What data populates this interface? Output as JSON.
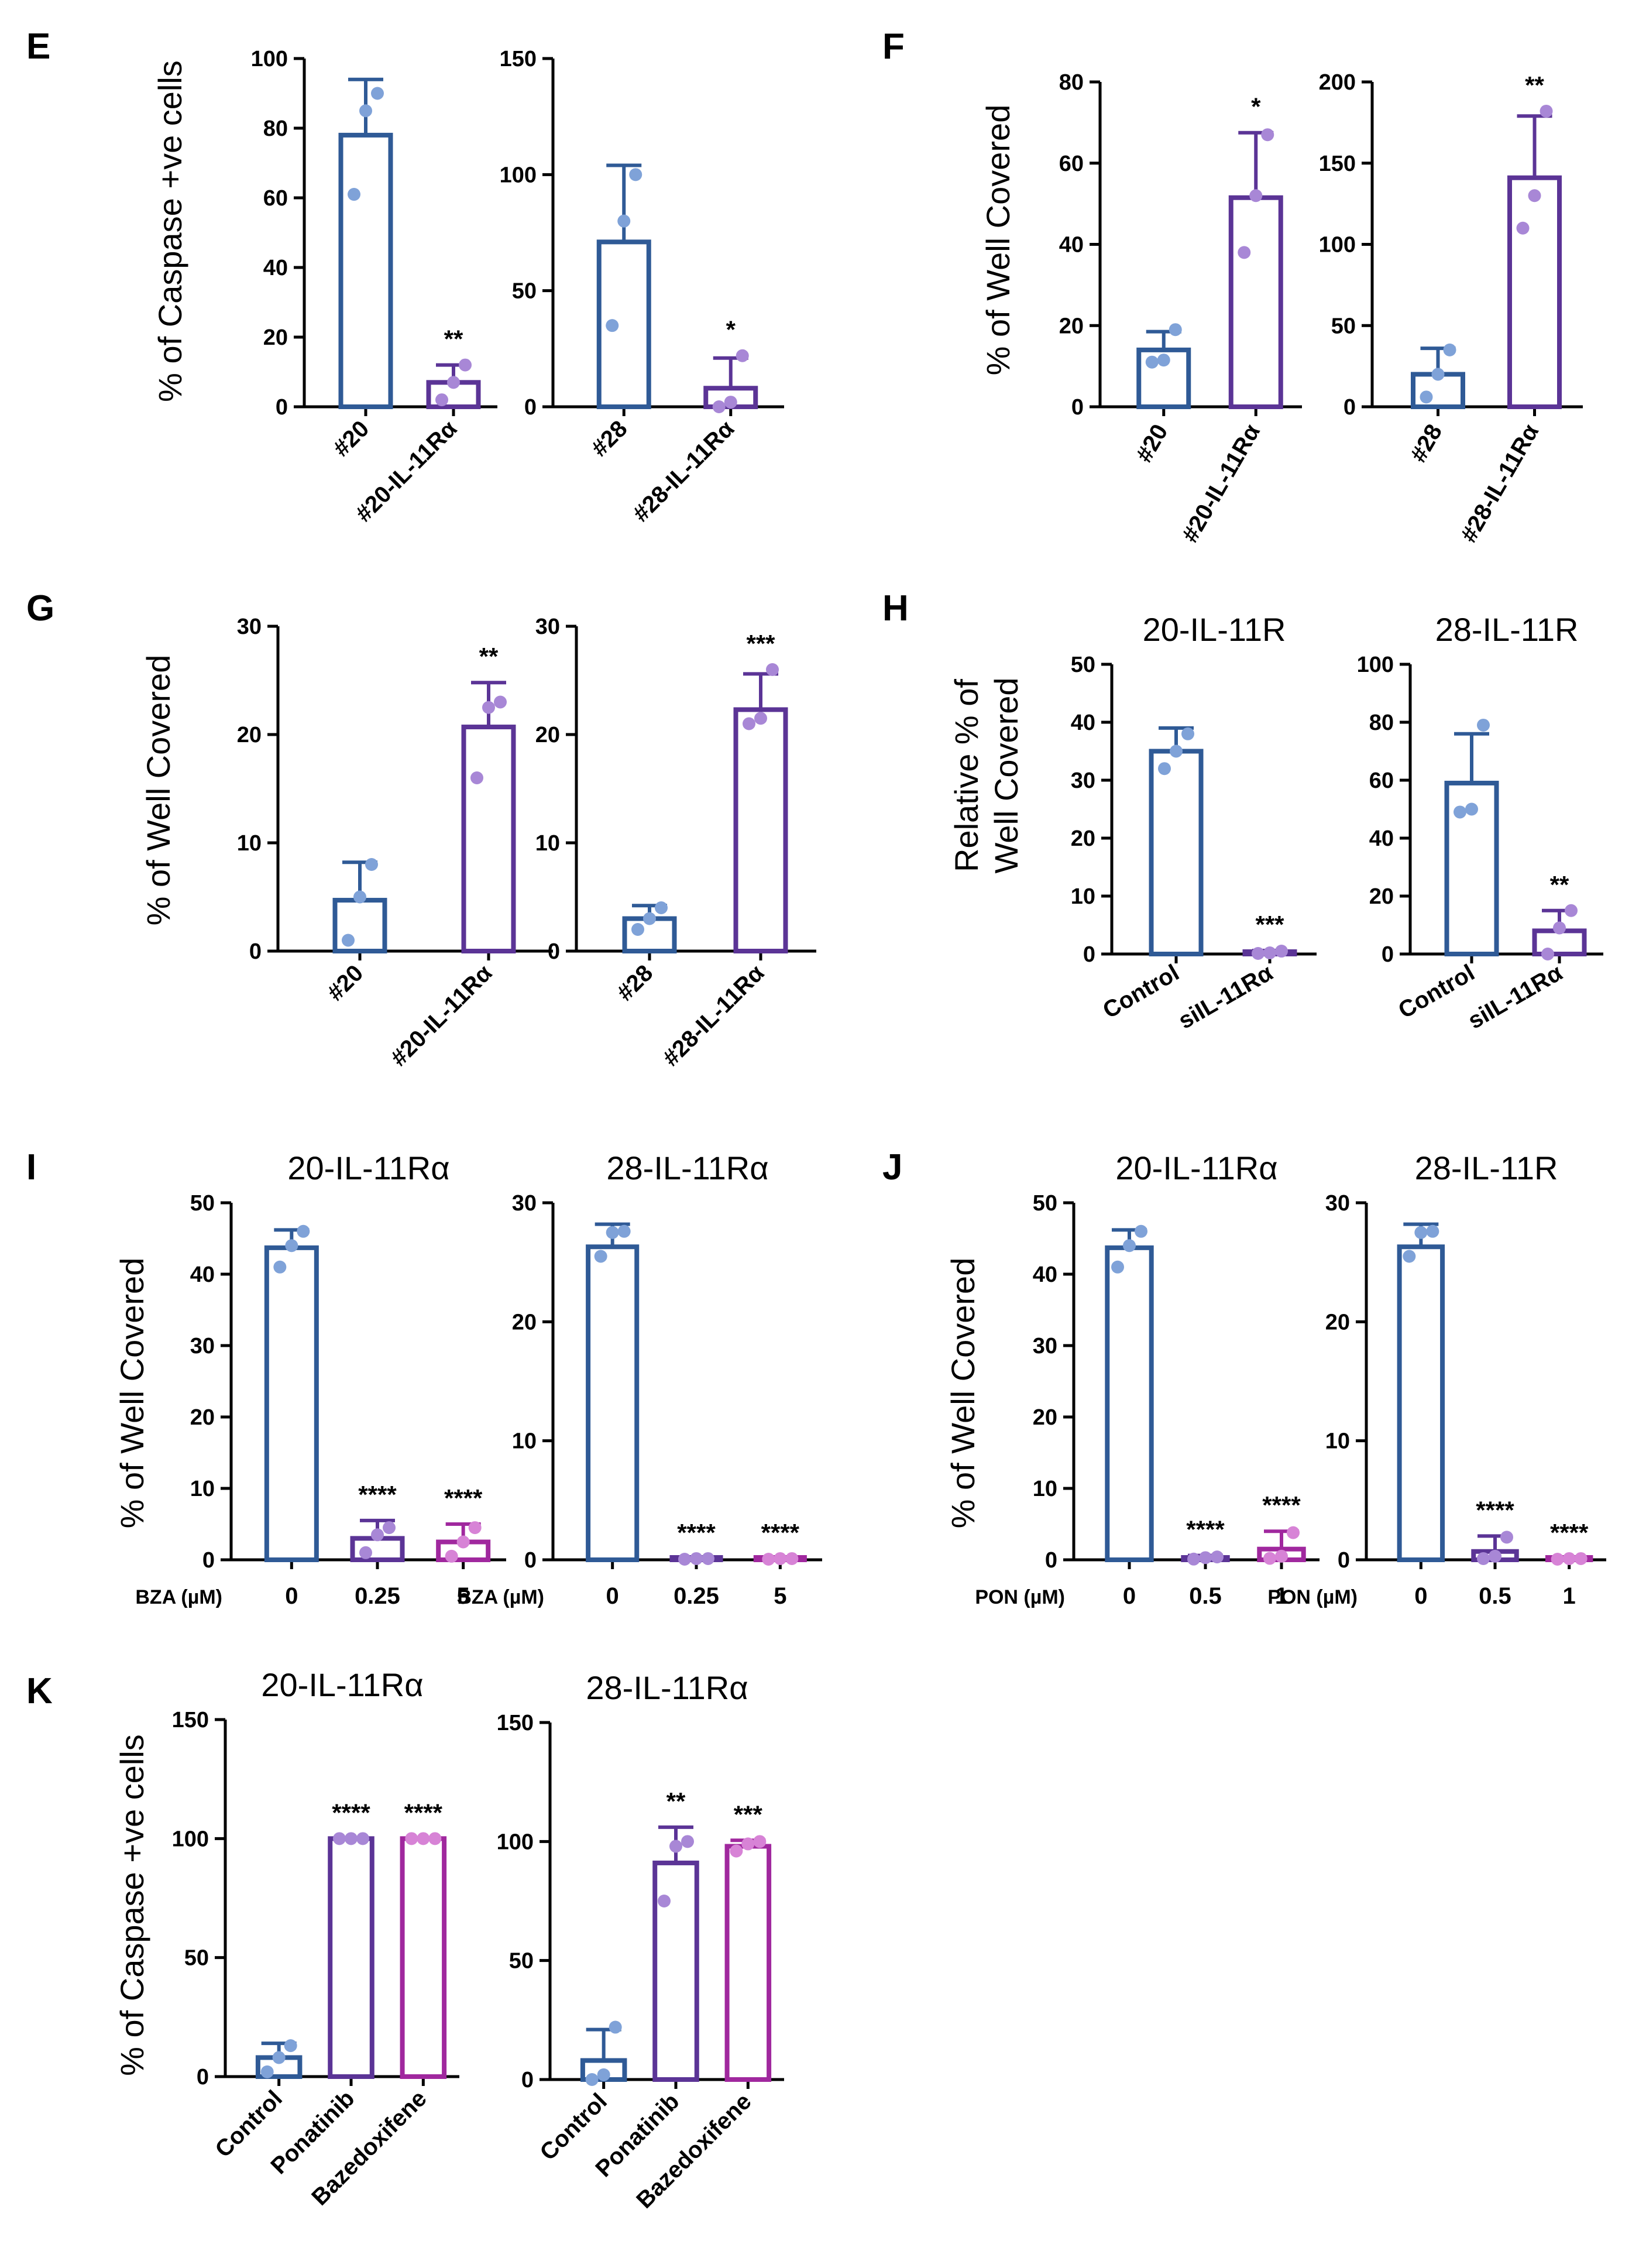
{
  "figure": {
    "colors": {
      "blue": "#2F5A96",
      "purple": "#5B3496",
      "magenta": "#A0289E",
      "dot_blue": "#7FA2D8",
      "dot_purple": "#A887D6",
      "dot_magenta": "#D783D6",
      "axis": "#000000"
    }
  },
  "panels": [
    {
      "letter": "E",
      "ylabel": "% of Caspase +ve cells"
    },
    {
      "letter": "F",
      "ylabel": "% of Well Covered"
    },
    {
      "letter": "G",
      "ylabel": "% of Well Covered"
    },
    {
      "letter": "H",
      "ylabel": "Relative % of\nWell Covered"
    },
    {
      "letter": "I",
      "ylabel": "% of Well Covered"
    },
    {
      "letter": "J",
      "ylabel": "% of Well Covered"
    },
    {
      "letter": "K",
      "ylabel": "% of Caspase +ve cells"
    }
  ],
  "chart_data": [
    {
      "id": "E1",
      "panel": "E",
      "type": "bar",
      "title": "",
      "xlabel": "",
      "ylabel": "% of Caspase +ve cells",
      "ylim": [
        0,
        100
      ],
      "yticks": [
        0,
        20,
        40,
        60,
        80,
        100
      ],
      "tick_rotation": -45,
      "axis_label": "",
      "categories": [
        "#20",
        "#20-IL-11Rα"
      ],
      "values": [
        78,
        7
      ],
      "errors": [
        16,
        5
      ],
      "points": [
        [
          61,
          85,
          90
        ],
        [
          2,
          7,
          12
        ]
      ],
      "significance": [
        "",
        "**"
      ],
      "colors": [
        "blue",
        "purple"
      ]
    },
    {
      "id": "E2",
      "panel": "E",
      "type": "bar",
      "title": "",
      "xlabel": "",
      "ylabel": "",
      "ylim": [
        0,
        150
      ],
      "yticks": [
        0,
        50,
        100,
        150
      ],
      "tick_rotation": -45,
      "axis_label": "",
      "categories": [
        "#28",
        "#28-IL-11Rα"
      ],
      "values": [
        71,
        8
      ],
      "errors": [
        33,
        13
      ],
      "points": [
        [
          35,
          80,
          100
        ],
        [
          0,
          2,
          22
        ]
      ],
      "significance": [
        "",
        "*"
      ],
      "colors": [
        "blue",
        "purple"
      ]
    },
    {
      "id": "F1",
      "panel": "F",
      "type": "bar",
      "title": "",
      "xlabel": "",
      "ylabel": "% of Well Covered",
      "ylim": [
        0,
        80
      ],
      "yticks": [
        0,
        20,
        40,
        60,
        80
      ],
      "tick_rotation": -60,
      "axis_label": "",
      "categories": [
        "#20",
        "#20-IL-11Rα"
      ],
      "values": [
        14,
        51.5
      ],
      "errors": [
        4.5,
        16
      ],
      "points": [
        [
          11,
          11.5,
          19
        ],
        [
          38,
          52,
          67
        ]
      ],
      "significance": [
        "",
        "*"
      ],
      "colors": [
        "blue",
        "purple"
      ]
    },
    {
      "id": "F2",
      "panel": "F",
      "type": "bar",
      "title": "",
      "xlabel": "",
      "ylabel": "",
      "ylim": [
        0,
        200
      ],
      "yticks": [
        0,
        50,
        100,
        150,
        200
      ],
      "tick_rotation": -60,
      "axis_label": "",
      "categories": [
        "#28",
        "#28-IL-11Rα"
      ],
      "values": [
        20,
        141
      ],
      "errors": [
        16,
        38
      ],
      "points": [
        [
          6,
          20,
          35
        ],
        [
          110,
          130,
          182
        ]
      ],
      "significance": [
        "",
        "**"
      ],
      "colors": [
        "blue",
        "purple"
      ]
    },
    {
      "id": "G1",
      "panel": "G",
      "type": "bar",
      "title": "",
      "xlabel": "",
      "ylabel": "% of Well Covered",
      "ylim": [
        0,
        30
      ],
      "yticks": [
        0,
        10,
        20,
        30
      ],
      "tick_rotation": -45,
      "axis_label": "",
      "categories": [
        "#20",
        "#20-IL-11Rα"
      ],
      "values": [
        4.7,
        20.7
      ],
      "errors": [
        3.5,
        4.1
      ],
      "points": [
        [
          1,
          5,
          8
        ],
        [
          16,
          22.5,
          23
        ]
      ],
      "significance": [
        "",
        "**"
      ],
      "colors": [
        "blue",
        "purple"
      ]
    },
    {
      "id": "G2",
      "panel": "G",
      "type": "bar",
      "title": "",
      "xlabel": "",
      "ylabel": "",
      "ylim": [
        0,
        30
      ],
      "yticks": [
        0,
        10,
        20,
        30
      ],
      "tick_rotation": -45,
      "axis_label": "",
      "categories": [
        "#28",
        "#28-IL-11Rα"
      ],
      "values": [
        3,
        22.3
      ],
      "errors": [
        1.2,
        3.3
      ],
      "points": [
        [
          2,
          3,
          4
        ],
        [
          21,
          21.5,
          26
        ]
      ],
      "significance": [
        "",
        "***"
      ],
      "colors": [
        "blue",
        "purple"
      ]
    },
    {
      "id": "H1",
      "panel": "H",
      "type": "bar",
      "title": "20-IL-11R",
      "xlabel": "",
      "ylabel": "Relative % of Well Covered",
      "ylim": [
        0,
        50
      ],
      "yticks": [
        0,
        10,
        20,
        30,
        40,
        50
      ],
      "tick_rotation": -30,
      "axis_label": "",
      "categories": [
        "Control",
        "siIL-11Rα"
      ],
      "values": [
        35,
        0.3
      ],
      "errors": [
        4,
        0.3
      ],
      "points": [
        [
          32,
          35,
          38
        ],
        [
          0.1,
          0.2,
          0.5
        ]
      ],
      "significance": [
        "",
        "***"
      ],
      "colors": [
        "blue",
        "purple"
      ]
    },
    {
      "id": "H2",
      "panel": "H",
      "type": "bar",
      "title": "28-IL-11R",
      "xlabel": "",
      "ylabel": "",
      "ylim": [
        0,
        100
      ],
      "yticks": [
        0,
        20,
        40,
        60,
        80,
        100
      ],
      "tick_rotation": -30,
      "axis_label": "",
      "categories": [
        "Control",
        "siIL-11Rα"
      ],
      "values": [
        59,
        8
      ],
      "errors": [
        17,
        7
      ],
      "points": [
        [
          49,
          50,
          79
        ],
        [
          0,
          9,
          15
        ]
      ],
      "significance": [
        "",
        "**"
      ],
      "colors": [
        "blue",
        "purple"
      ]
    },
    {
      "id": "I1",
      "panel": "I",
      "type": "bar",
      "title": "20-IL-11Rα",
      "xlabel": "",
      "ylabel": "% of Well Covered",
      "ylim": [
        0,
        50
      ],
      "yticks": [
        0,
        10,
        20,
        30,
        40,
        50
      ],
      "tick_rotation": 0,
      "axis_label": "BZA (µM)",
      "categories": [
        "0",
        "0.25",
        "5"
      ],
      "values": [
        43.7,
        3,
        2.5
      ],
      "errors": [
        2.5,
        2.5,
        2.5
      ],
      "points": [
        [
          41,
          44,
          46
        ],
        [
          1,
          3.5,
          4.5
        ],
        [
          0.5,
          2.5,
          4.5
        ]
      ],
      "significance": [
        "",
        "****",
        "****"
      ],
      "colors": [
        "blue",
        "purple",
        "magenta"
      ]
    },
    {
      "id": "I2",
      "panel": "I",
      "type": "bar",
      "title": "28-IL-11Rα",
      "xlabel": "",
      "ylabel": "",
      "ylim": [
        0,
        30
      ],
      "yticks": [
        0,
        10,
        20,
        30
      ],
      "tick_rotation": 0,
      "axis_label": "BZA (µM)",
      "categories": [
        "0",
        "0.25",
        "5"
      ],
      "values": [
        26.3,
        0.1,
        0.1
      ],
      "errors": [
        1.9,
        0,
        0
      ],
      "points": [
        [
          25.5,
          27.5,
          27.6
        ],
        [
          0.05,
          0.1,
          0.1
        ],
        [
          0.05,
          0.1,
          0.1
        ]
      ],
      "significance": [
        "",
        "****",
        "****"
      ],
      "colors": [
        "blue",
        "purple",
        "magenta"
      ]
    },
    {
      "id": "J1",
      "panel": "J",
      "type": "bar",
      "title": "20-IL-11Rα",
      "xlabel": "",
      "ylabel": "% of Well Covered",
      "ylim": [
        0,
        50
      ],
      "yticks": [
        0,
        10,
        20,
        30,
        40,
        50
      ],
      "tick_rotation": 0,
      "axis_label": "PON (µM)",
      "categories": [
        "0",
        "0.5",
        "1"
      ],
      "values": [
        43.7,
        0.3,
        1.5
      ],
      "errors": [
        2.5,
        0.3,
        2.5
      ],
      "points": [
        [
          41,
          44,
          46
        ],
        [
          0.1,
          0.3,
          0.4
        ],
        [
          0.2,
          0.5,
          3.8
        ]
      ],
      "significance": [
        "",
        "****",
        "****"
      ],
      "colors": [
        "blue",
        "purple",
        "magenta"
      ]
    },
    {
      "id": "J2",
      "panel": "J",
      "type": "bar",
      "title": "28-IL-11R",
      "xlabel": "",
      "ylabel": "",
      "ylim": [
        0,
        30
      ],
      "yticks": [
        0,
        10,
        20,
        30
      ],
      "tick_rotation": 0,
      "axis_label": "PON (µM)",
      "categories": [
        "0",
        "0.5",
        "1"
      ],
      "values": [
        26.3,
        0.7,
        0.1
      ],
      "errors": [
        1.9,
        1.3,
        0
      ],
      "points": [
        [
          25.5,
          27.5,
          27.6
        ],
        [
          0.1,
          0.3,
          1.9
        ],
        [
          0.05,
          0.1,
          0.1
        ]
      ],
      "significance": [
        "",
        "****",
        "****"
      ],
      "colors": [
        "blue",
        "purple",
        "magenta"
      ]
    },
    {
      "id": "K1",
      "panel": "K",
      "type": "bar",
      "title": "20-IL-11Rα",
      "xlabel": "",
      "ylabel": "% of Caspase +ve cells",
      "ylim": [
        0,
        150
      ],
      "yticks": [
        0,
        50,
        100,
        150
      ],
      "tick_rotation": -45,
      "axis_label": "",
      "categories": [
        "Control",
        "Ponatinib",
        "Bazedoxifene"
      ],
      "values": [
        8,
        100,
        100
      ],
      "errors": [
        6,
        0,
        0
      ],
      "points": [
        [
          2,
          8,
          13
        ],
        [
          100,
          100,
          100
        ],
        [
          100,
          100,
          100
        ]
      ],
      "significance": [
        "",
        "****",
        "****"
      ],
      "colors": [
        "blue",
        "purple",
        "magenta"
      ]
    },
    {
      "id": "K2",
      "panel": "K",
      "type": "bar",
      "title": "28-IL-11Rα",
      "xlabel": "",
      "ylabel": "",
      "ylim": [
        0,
        150
      ],
      "yticks": [
        0,
        50,
        100,
        150
      ],
      "tick_rotation": -45,
      "axis_label": "",
      "categories": [
        "Control",
        "Ponatinib",
        "Bazedoxifene"
      ],
      "values": [
        8,
        91,
        98
      ],
      "errors": [
        13,
        15,
        2.5
      ],
      "points": [
        [
          0,
          2,
          22
        ],
        [
          75,
          98,
          100
        ],
        [
          96,
          99,
          100
        ]
      ],
      "significance": [
        "",
        "**",
        "***"
      ],
      "colors": [
        "blue",
        "purple",
        "magenta"
      ]
    }
  ]
}
